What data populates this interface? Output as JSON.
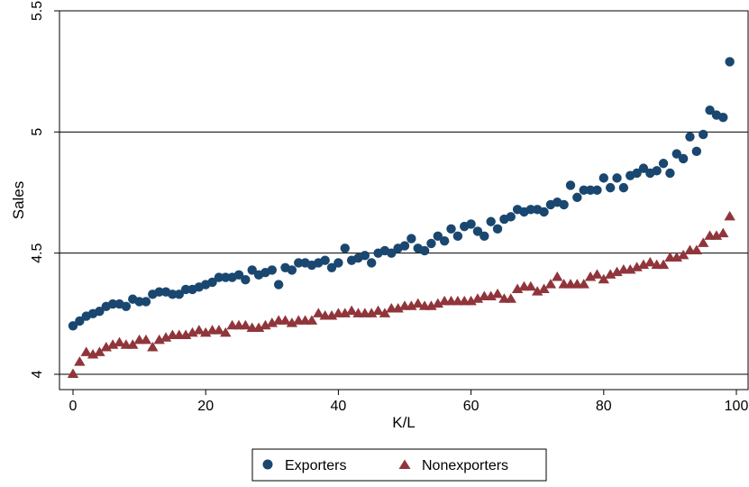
{
  "chart_data": {
    "type": "scatter",
    "xlabel": "K/L",
    "ylabel": "Sales",
    "xlim": [
      0,
      100
    ],
    "ylim": [
      4,
      5.5
    ],
    "x_ticks": [
      "0",
      "20",
      "40",
      "60",
      "80",
      "100"
    ],
    "y_ticks": [
      "4",
      "4.5",
      "5",
      "5.5"
    ],
    "grid": "horizontal",
    "legend_position": "bottom",
    "colors": {
      "exporters": "#1a476f",
      "nonexporters": "#90353b"
    },
    "series": [
      {
        "name": "Exporters",
        "marker": "circle",
        "x": [
          0,
          1,
          2,
          3,
          4,
          5,
          6,
          7,
          8,
          9,
          10,
          11,
          12,
          13,
          14,
          15,
          16,
          17,
          18,
          19,
          20,
          21,
          22,
          23,
          24,
          25,
          26,
          27,
          28,
          29,
          30,
          31,
          32,
          33,
          34,
          35,
          36,
          37,
          38,
          39,
          40,
          41,
          42,
          43,
          44,
          45,
          46,
          47,
          48,
          49,
          50,
          51,
          52,
          53,
          54,
          55,
          56,
          57,
          58,
          59,
          60,
          61,
          62,
          63,
          64,
          65,
          66,
          67,
          68,
          69,
          70,
          71,
          72,
          73,
          74,
          75,
          76,
          77,
          78,
          79,
          80,
          81,
          82,
          83,
          84,
          85,
          86,
          87,
          88,
          89,
          90,
          91,
          92,
          93,
          94,
          95,
          96,
          97,
          98,
          99
        ],
        "values": [
          4.2,
          4.22,
          4.24,
          4.25,
          4.26,
          4.28,
          4.29,
          4.29,
          4.28,
          4.31,
          4.3,
          4.3,
          4.33,
          4.34,
          4.34,
          4.33,
          4.33,
          4.35,
          4.35,
          4.36,
          4.37,
          4.38,
          4.4,
          4.4,
          4.4,
          4.41,
          4.39,
          4.43,
          4.41,
          4.42,
          4.43,
          4.37,
          4.44,
          4.43,
          4.46,
          4.46,
          4.45,
          4.46,
          4.47,
          4.44,
          4.46,
          4.52,
          4.47,
          4.48,
          4.49,
          4.46,
          4.5,
          4.51,
          4.5,
          4.52,
          4.53,
          4.56,
          4.52,
          4.51,
          4.54,
          4.57,
          4.55,
          4.6,
          4.57,
          4.61,
          4.62,
          4.59,
          4.57,
          4.63,
          4.6,
          4.64,
          4.65,
          4.68,
          4.67,
          4.68,
          4.68,
          4.67,
          4.7,
          4.71,
          4.7,
          4.78,
          4.73,
          4.76,
          4.76,
          4.76,
          4.81,
          4.77,
          4.81,
          4.77,
          4.82,
          4.83,
          4.85,
          4.83,
          4.84,
          4.87,
          4.83,
          4.91,
          4.89,
          4.98,
          4.92,
          4.99,
          5.09,
          5.07,
          5.06,
          5.29
        ]
      },
      {
        "name": "Nonexporters",
        "marker": "triangle",
        "x": [
          0,
          1,
          2,
          3,
          4,
          5,
          6,
          7,
          8,
          9,
          10,
          11,
          12,
          13,
          14,
          15,
          16,
          17,
          18,
          19,
          20,
          21,
          22,
          23,
          24,
          25,
          26,
          27,
          28,
          29,
          30,
          31,
          32,
          33,
          34,
          35,
          36,
          37,
          38,
          39,
          40,
          41,
          42,
          43,
          44,
          45,
          46,
          47,
          48,
          49,
          50,
          51,
          52,
          53,
          54,
          55,
          56,
          57,
          58,
          59,
          60,
          61,
          62,
          63,
          64,
          65,
          66,
          67,
          68,
          69,
          70,
          71,
          72,
          73,
          74,
          75,
          76,
          77,
          78,
          79,
          80,
          81,
          82,
          83,
          84,
          85,
          86,
          87,
          88,
          89,
          90,
          91,
          92,
          93,
          94,
          95,
          96,
          97,
          98,
          99
        ],
        "values": [
          4.0,
          4.05,
          4.09,
          4.08,
          4.09,
          4.11,
          4.12,
          4.13,
          4.12,
          4.12,
          4.14,
          4.14,
          4.11,
          4.14,
          4.15,
          4.16,
          4.16,
          4.16,
          4.17,
          4.18,
          4.17,
          4.18,
          4.18,
          4.17,
          4.2,
          4.2,
          4.2,
          4.19,
          4.19,
          4.2,
          4.21,
          4.22,
          4.22,
          4.21,
          4.22,
          4.22,
          4.22,
          4.25,
          4.24,
          4.24,
          4.25,
          4.25,
          4.26,
          4.25,
          4.25,
          4.25,
          4.26,
          4.25,
          4.27,
          4.27,
          4.28,
          4.28,
          4.29,
          4.28,
          4.28,
          4.29,
          4.3,
          4.3,
          4.3,
          4.3,
          4.3,
          4.31,
          4.32,
          4.32,
          4.33,
          4.31,
          4.31,
          4.35,
          4.36,
          4.36,
          4.34,
          4.35,
          4.37,
          4.4,
          4.37,
          4.37,
          4.37,
          4.37,
          4.4,
          4.41,
          4.39,
          4.41,
          4.42,
          4.43,
          4.43,
          4.44,
          4.45,
          4.46,
          4.45,
          4.45,
          4.48,
          4.48,
          4.49,
          4.51,
          4.51,
          4.54,
          4.57,
          4.57,
          4.58,
          4.65
        ]
      }
    ]
  }
}
